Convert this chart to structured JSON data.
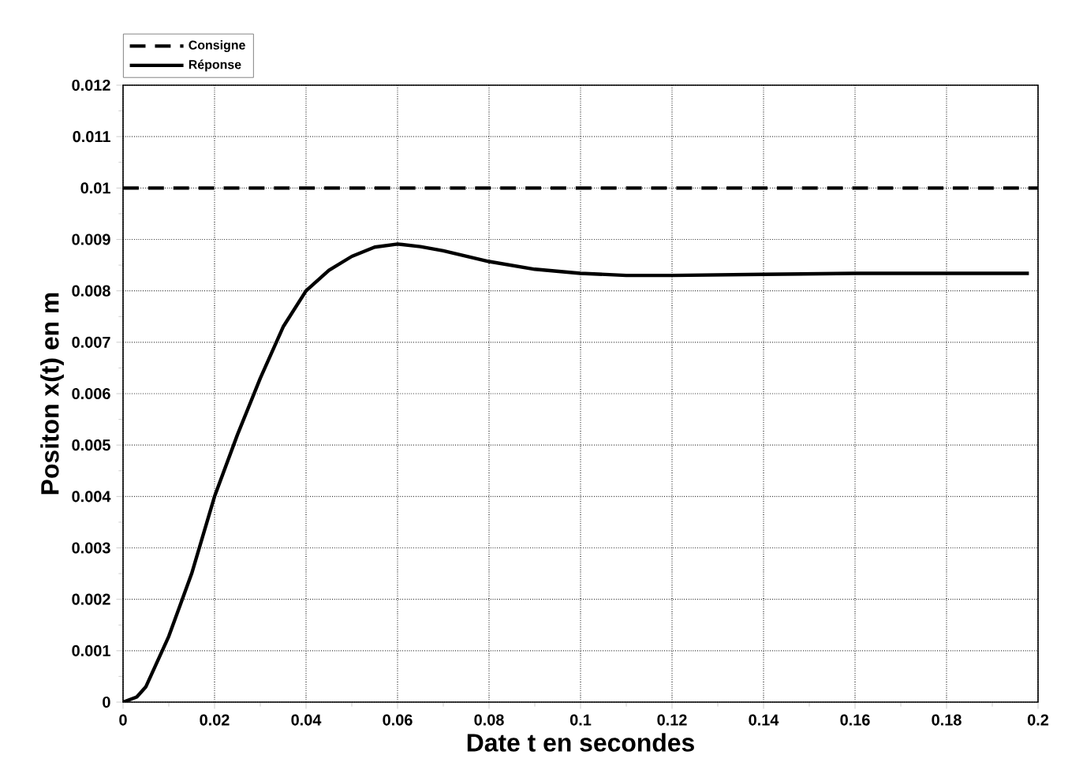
{
  "chart_data": {
    "type": "line",
    "xlabel": "Date t en secondes",
    "ylabel": "Positon x(t) en m",
    "xlim": [
      0,
      0.2
    ],
    "ylim": [
      0,
      0.012
    ],
    "xticks": [
      0,
      0.02,
      0.04,
      0.06,
      0.08,
      0.1,
      0.12,
      0.14,
      0.16,
      0.18,
      0.2
    ],
    "yticks": [
      0,
      0.001,
      0.002,
      0.003,
      0.004,
      0.005,
      0.006,
      0.007,
      0.008,
      0.009,
      0.01,
      0.011,
      0.012
    ],
    "grid": true,
    "ref_lines": [
      {
        "axis": "y",
        "value": 0.01,
        "label": "Consigne",
        "color": "#000000",
        "line_style": "dashed"
      }
    ],
    "legend": "top left",
    "series": [
      {
        "name": "Réponse",
        "color": "#000000",
        "line_style": "solid",
        "x": [
          0,
          0.003,
          0.005,
          0.01,
          0.015,
          0.02,
          0.025,
          0.03,
          0.035,
          0.04,
          0.045,
          0.05,
          0.055,
          0.06,
          0.065,
          0.07,
          0.08,
          0.09,
          0.1,
          0.11,
          0.12,
          0.14,
          0.16,
          0.18,
          0.198
        ],
        "values": [
          0,
          0.0001,
          0.0003,
          0.00128,
          0.0025,
          0.004,
          0.0052,
          0.0063,
          0.0073,
          0.008,
          0.0084,
          0.00867,
          0.00885,
          0.00891,
          0.00886,
          0.00878,
          0.00857,
          0.00842,
          0.00834,
          0.0083,
          0.0083,
          0.00832,
          0.00834,
          0.00834,
          0.00834
        ]
      }
    ]
  }
}
